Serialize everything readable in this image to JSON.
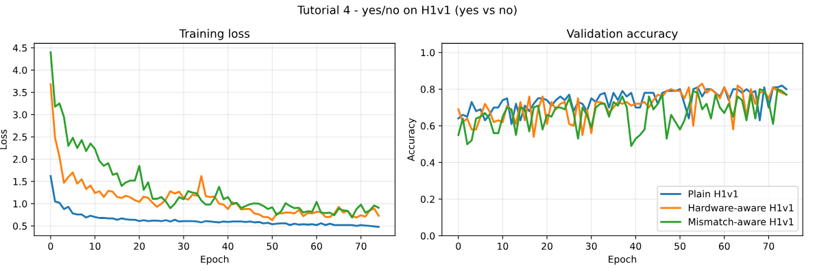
{
  "chart_data": [
    {
      "type": "line",
      "title": "Training loss",
      "xlabel": "Epoch",
      "ylabel": "Loss",
      "annotations": [
        "Tutorial 4 - yes/no on H1v1 (yes vs no)"
      ],
      "x": [
        0,
        1,
        2,
        3,
        4,
        5,
        6,
        7,
        8,
        9,
        10,
        11,
        12,
        13,
        14,
        15,
        16,
        17,
        18,
        19,
        20,
        21,
        22,
        23,
        24,
        25,
        26,
        27,
        28,
        29,
        30,
        31,
        32,
        33,
        34,
        35,
        36,
        37,
        38,
        39,
        40,
        41,
        42,
        43,
        44,
        45,
        46,
        47,
        48,
        49,
        50,
        51,
        52,
        53,
        54,
        55,
        56,
        57,
        58,
        59,
        60,
        61,
        62,
        63,
        64,
        65,
        66,
        67,
        68,
        69,
        70,
        71,
        72,
        73,
        74
      ],
      "xlim": [
        -3.7,
        77.7
      ],
      "ylim": [
        0.28,
        4.6
      ],
      "xticks": [
        0,
        10,
        20,
        30,
        40,
        50,
        60,
        70
      ],
      "yticks": [
        {
          "value": 0.5,
          "label": "0.5"
        },
        {
          "value": 1.0,
          "label": "1.0"
        },
        {
          "value": 1.5,
          "label": "1.5"
        },
        {
          "value": 2.0,
          "label": "2.0"
        },
        {
          "value": 2.5,
          "label": "2.5"
        },
        {
          "value": 3.0,
          "label": "3.0"
        },
        {
          "value": 3.5,
          "label": "3.5"
        },
        {
          "value": 4.0,
          "label": "4.0"
        },
        {
          "value": 4.5,
          "label": "4.5"
        }
      ],
      "grid": true,
      "series": [
        {
          "color": "#1f77b4",
          "values": [
            1.62,
            1.05,
            1.02,
            0.88,
            0.93,
            0.78,
            0.76,
            0.76,
            0.69,
            0.73,
            0.7,
            0.68,
            0.68,
            0.67,
            0.67,
            0.64,
            0.67,
            0.65,
            0.64,
            0.64,
            0.61,
            0.63,
            0.61,
            0.62,
            0.62,
            0.61,
            0.63,
            0.6,
            0.64,
            0.6,
            0.61,
            0.61,
            0.61,
            0.6,
            0.58,
            0.61,
            0.6,
            0.59,
            0.58,
            0.6,
            0.59,
            0.6,
            0.6,
            0.6,
            0.59,
            0.6,
            0.58,
            0.59,
            0.56,
            0.57,
            0.54,
            0.55,
            0.56,
            0.56,
            0.52,
            0.55,
            0.53,
            0.54,
            0.53,
            0.54,
            0.52,
            0.56,
            0.52,
            0.55,
            0.52,
            0.52,
            0.52,
            0.52,
            0.52,
            0.5,
            0.52,
            0.51,
            0.5,
            0.49,
            0.48
          ]
        },
        {
          "color": "#ff7f0e",
          "values": [
            3.68,
            2.48,
            2.05,
            1.47,
            1.6,
            1.7,
            1.45,
            1.55,
            1.33,
            1.41,
            1.24,
            1.28,
            1.15,
            1.29,
            1.27,
            1.15,
            1.13,
            1.18,
            1.14,
            1.08,
            1.04,
            1.16,
            1.13,
            1.02,
            0.93,
            1.0,
            1.1,
            1.28,
            1.23,
            1.27,
            1.13,
            1.09,
            1.2,
            1.18,
            1.62,
            1.17,
            1.15,
            1.16,
            1.0,
            0.98,
            0.88,
            1.03,
            1.0,
            0.87,
            0.88,
            0.88,
            0.78,
            0.76,
            0.7,
            0.7,
            0.63,
            0.78,
            0.78,
            0.8,
            0.8,
            0.78,
            0.86,
            0.72,
            0.79,
            0.78,
            0.82,
            0.81,
            0.7,
            0.7,
            0.78,
            0.93,
            0.8,
            0.84,
            0.72,
            0.69,
            0.74,
            0.71,
            0.85,
            0.89,
            0.73
          ]
        },
        {
          "color": "#2ca02c",
          "values": [
            4.4,
            3.18,
            3.25,
            2.95,
            2.3,
            2.48,
            2.25,
            2.43,
            2.18,
            2.35,
            2.23,
            1.96,
            1.85,
            1.91,
            1.65,
            1.68,
            1.4,
            1.48,
            1.52,
            1.52,
            1.85,
            1.31,
            1.48,
            1.11,
            1.11,
            1.15,
            1.05,
            0.9,
            1.0,
            1.15,
            1.1,
            1.28,
            1.25,
            1.23,
            1.07,
            0.98,
            0.98,
            1.13,
            1.38,
            1.1,
            1.15,
            0.99,
            1.02,
            0.9,
            0.95,
            0.99,
            1.01,
            1.0,
            0.95,
            0.88,
            0.92,
            0.75,
            0.83,
            1.01,
            0.95,
            0.9,
            0.91,
            0.8,
            0.83,
            0.82,
            1.04,
            0.8,
            0.79,
            0.8,
            0.74,
            0.89,
            0.85,
            0.84,
            0.69,
            0.88,
            0.98,
            0.8,
            0.85,
            0.96,
            0.91
          ]
        }
      ]
    },
    {
      "type": "line",
      "title": "Validation accuracy",
      "xlabel": "Epoch",
      "ylabel": "Accuracy",
      "x": [
        0,
        1,
        2,
        3,
        4,
        5,
        6,
        7,
        8,
        9,
        10,
        11,
        12,
        13,
        14,
        15,
        16,
        17,
        18,
        19,
        20,
        21,
        22,
        23,
        24,
        25,
        26,
        27,
        28,
        29,
        30,
        31,
        32,
        33,
        34,
        35,
        36,
        37,
        38,
        39,
        40,
        41,
        42,
        43,
        44,
        45,
        46,
        47,
        48,
        49,
        50,
        51,
        52,
        53,
        54,
        55,
        56,
        57,
        58,
        59,
        60,
        61,
        62,
        63,
        64,
        65,
        66,
        67,
        68,
        69,
        70,
        71,
        72,
        73,
        74
      ],
      "xlim": [
        -3.7,
        77.7
      ],
      "ylim": [
        0,
        1.05
      ],
      "xticks": [
        0,
        10,
        20,
        30,
        40,
        50,
        60,
        70
      ],
      "yticks": [
        {
          "value": 0,
          "label": "0.0"
        },
        {
          "value": 0.2,
          "label": "0.2"
        },
        {
          "value": 0.4,
          "label": "0.4"
        },
        {
          "value": 0.6,
          "label": "0.6"
        },
        {
          "value": 0.8,
          "label": "0.8"
        },
        {
          "value": 1.0,
          "label": "1.0"
        }
      ],
      "grid": true,
      "legend": "lower right",
      "series": [
        {
          "name": "Plain H1v1",
          "color": "#1f77b4",
          "values": [
            0.64,
            0.66,
            0.65,
            0.73,
            0.68,
            0.69,
            0.63,
            0.66,
            0.7,
            0.7,
            0.74,
            0.75,
            0.61,
            0.72,
            0.63,
            0.71,
            0.68,
            0.72,
            0.75,
            0.75,
            0.74,
            0.71,
            0.74,
            0.76,
            0.74,
            0.77,
            0.68,
            0.73,
            0.72,
            0.68,
            0.75,
            0.73,
            0.77,
            0.78,
            0.7,
            0.78,
            0.74,
            0.79,
            0.76,
            0.78,
            0.7,
            0.7,
            0.78,
            0.78,
            0.78,
            0.72,
            0.78,
            0.79,
            0.79,
            0.79,
            0.8,
            0.72,
            0.64,
            0.8,
            0.81,
            0.76,
            0.8,
            0.8,
            0.78,
            0.76,
            0.81,
            0.74,
            0.8,
            0.8,
            0.78,
            0.8,
            0.78,
            0.79,
            0.63,
            0.81,
            0.7,
            0.81,
            0.81,
            0.82,
            0.8
          ]
        },
        {
          "name": "Hardware-aware H1v1",
          "color": "#ff7f0e",
          "values": [
            0.69,
            0.62,
            0.64,
            0.58,
            0.58,
            0.65,
            0.72,
            0.68,
            0.62,
            0.63,
            0.62,
            0.71,
            0.68,
            0.61,
            0.73,
            0.63,
            0.76,
            0.54,
            0.69,
            0.76,
            0.61,
            0.73,
            0.69,
            0.72,
            0.73,
            0.61,
            0.6,
            0.75,
            0.55,
            0.69,
            0.56,
            0.73,
            0.73,
            0.72,
            0.67,
            0.7,
            0.73,
            0.72,
            0.73,
            0.71,
            0.72,
            0.72,
            0.73,
            0.7,
            0.74,
            0.77,
            0.76,
            0.79,
            0.8,
            0.79,
            0.79,
            0.75,
            0.81,
            0.6,
            0.81,
            0.83,
            0.78,
            0.8,
            0.78,
            0.75,
            0.81,
            0.76,
            0.58,
            0.82,
            0.8,
            0.65,
            0.8,
            0.72,
            0.78,
            0.79,
            0.75,
            0.81,
            0.79,
            0.78,
            0.77
          ]
        },
        {
          "name": "Mismatch-aware H1v1",
          "color": "#2ca02c",
          "values": [
            0.55,
            0.64,
            0.5,
            0.52,
            0.64,
            0.65,
            0.67,
            0.64,
            0.56,
            0.56,
            0.65,
            0.7,
            0.69,
            0.55,
            0.7,
            0.69,
            0.57,
            0.7,
            0.71,
            0.58,
            0.66,
            0.65,
            0.7,
            0.7,
            0.69,
            0.75,
            0.67,
            0.53,
            0.7,
            0.66,
            0.59,
            0.7,
            0.72,
            0.72,
            0.65,
            0.73,
            0.71,
            0.76,
            0.7,
            0.49,
            0.53,
            0.55,
            0.58,
            0.76,
            0.69,
            0.72,
            0.77,
            0.53,
            0.66,
            0.62,
            0.58,
            0.63,
            0.71,
            0.79,
            0.78,
            0.69,
            0.72,
            0.64,
            0.77,
            0.7,
            0.67,
            0.72,
            0.65,
            0.76,
            0.74,
            0.63,
            0.77,
            0.64,
            0.8,
            0.79,
            0.73,
            0.61,
            0.8,
            0.79,
            0.77
          ]
        }
      ]
    }
  ]
}
